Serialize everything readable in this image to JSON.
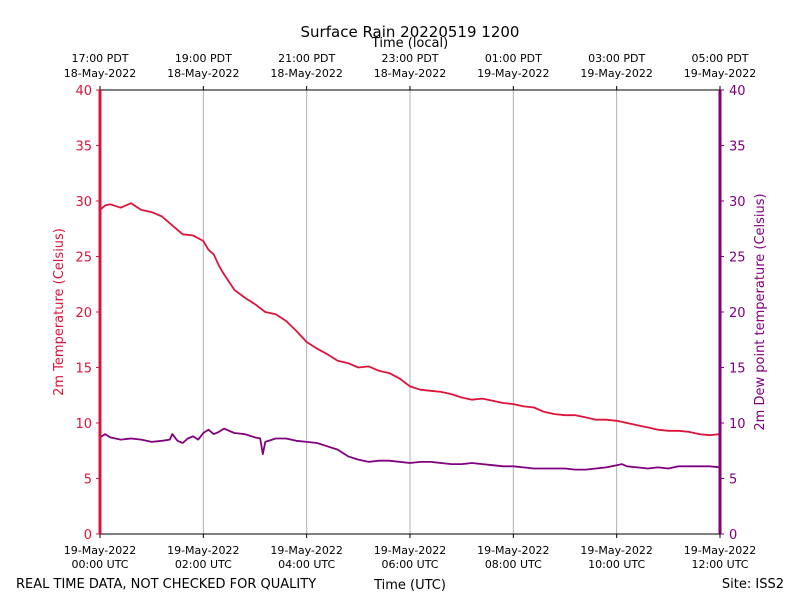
{
  "chart_data": {
    "type": "line",
    "title": "Surface Rain 20220519 1200",
    "top_axis_label": "Time (local)",
    "xlabel": "Time (UTC)",
    "ylabel_left": "2m Temperature (Celsius)",
    "ylabel_right": "2m Dew point temperature (Celsius)",
    "ylim": [
      0,
      40
    ],
    "yticks": [
      "0",
      "5",
      "10",
      "15",
      "20",
      "25",
      "30",
      "35",
      "40"
    ],
    "xlim_hours_utc": [
      0,
      12
    ],
    "grid": "vertical",
    "bottom_ticks": [
      {
        "hour": 0,
        "line1": "19-May-2022",
        "line2": "00:00 UTC"
      },
      {
        "hour": 2,
        "line1": "19-May-2022",
        "line2": "02:00 UTC"
      },
      {
        "hour": 4,
        "line1": "19-May-2022",
        "line2": "04:00 UTC"
      },
      {
        "hour": 6,
        "line1": "19-May-2022",
        "line2": "06:00 UTC"
      },
      {
        "hour": 8,
        "line1": "19-May-2022",
        "line2": "08:00 UTC"
      },
      {
        "hour": 10,
        "line1": "19-May-2022",
        "line2": "10:00 UTC"
      },
      {
        "hour": 12,
        "line1": "19-May-2022",
        "line2": "12:00 UTC"
      }
    ],
    "top_ticks": [
      {
        "hour": 0,
        "line1": "17:00 PDT",
        "line2": "18-May-2022"
      },
      {
        "hour": 2,
        "line1": "19:00 PDT",
        "line2": "18-May-2022"
      },
      {
        "hour": 4,
        "line1": "21:00 PDT",
        "line2": "18-May-2022"
      },
      {
        "hour": 6,
        "line1": "23:00 PDT",
        "line2": "18-May-2022"
      },
      {
        "hour": 8,
        "line1": "01:00 PDT",
        "line2": "19-May-2022"
      },
      {
        "hour": 10,
        "line1": "03:00 PDT",
        "line2": "19-May-2022"
      },
      {
        "hour": 12,
        "line1": "05:00 PDT",
        "line2": "19-May-2022"
      }
    ],
    "series": [
      {
        "name": "2m Temperature",
        "color": "#dc143c",
        "axis": "left",
        "x": [
          0,
          0.1,
          0.2,
          0.4,
          0.6,
          0.8,
          1.0,
          1.2,
          1.4,
          1.6,
          1.8,
          2.0,
          2.1,
          2.2,
          2.3,
          2.4,
          2.6,
          2.8,
          3.0,
          3.2,
          3.4,
          3.6,
          3.8,
          4.0,
          4.2,
          4.4,
          4.6,
          4.8,
          5.0,
          5.2,
          5.4,
          5.6,
          5.8,
          6.0,
          6.2,
          6.4,
          6.6,
          6.8,
          7.0,
          7.2,
          7.4,
          7.6,
          7.8,
          8.0,
          8.2,
          8.4,
          8.6,
          8.8,
          9.0,
          9.2,
          9.4,
          9.6,
          9.8,
          10.0,
          10.2,
          10.4,
          10.6,
          10.8,
          11.0,
          11.2,
          11.4,
          11.6,
          11.8,
          12.0
        ],
        "values": [
          29.2,
          29.6,
          29.7,
          29.4,
          29.8,
          29.2,
          29.0,
          28.6,
          27.8,
          27.0,
          26.9,
          26.4,
          25.6,
          25.2,
          24.2,
          23.4,
          22.0,
          21.3,
          20.7,
          20.0,
          19.8,
          19.2,
          18.3,
          17.3,
          16.7,
          16.2,
          15.6,
          15.4,
          15.0,
          15.1,
          14.7,
          14.5,
          14.0,
          13.3,
          13.0,
          12.9,
          12.8,
          12.6,
          12.3,
          12.1,
          12.2,
          12.0,
          11.8,
          11.7,
          11.5,
          11.4,
          11.0,
          10.8,
          10.7,
          10.7,
          10.5,
          10.3,
          10.3,
          10.2,
          10.0,
          9.8,
          9.6,
          9.4,
          9.3,
          9.3,
          9.2,
          9.0,
          8.9,
          9.0
        ]
      },
      {
        "name": "2m Dew point temperature",
        "color": "#800080",
        "axis": "right",
        "x": [
          0,
          0.1,
          0.2,
          0.4,
          0.6,
          0.8,
          1.0,
          1.2,
          1.35,
          1.4,
          1.5,
          1.6,
          1.7,
          1.8,
          1.9,
          2.0,
          2.1,
          2.2,
          2.3,
          2.4,
          2.6,
          2.8,
          3.0,
          3.1,
          3.15,
          3.2,
          3.4,
          3.6,
          3.8,
          4.0,
          4.2,
          4.4,
          4.6,
          4.8,
          5.0,
          5.2,
          5.4,
          5.6,
          5.8,
          6.0,
          6.2,
          6.4,
          6.6,
          6.8,
          7.0,
          7.2,
          7.4,
          7.6,
          7.8,
          8.0,
          8.2,
          8.4,
          8.6,
          8.8,
          9.0,
          9.2,
          9.4,
          9.6,
          9.8,
          10.0,
          10.1,
          10.2,
          10.4,
          10.6,
          10.8,
          11.0,
          11.2,
          11.4,
          11.6,
          11.8,
          12.0
        ],
        "values": [
          8.7,
          9.0,
          8.7,
          8.5,
          8.6,
          8.5,
          8.3,
          8.4,
          8.5,
          9.0,
          8.4,
          8.2,
          8.6,
          8.8,
          8.5,
          9.1,
          9.4,
          9.0,
          9.2,
          9.5,
          9.1,
          9.0,
          8.7,
          8.6,
          7.2,
          8.3,
          8.6,
          8.6,
          8.4,
          8.3,
          8.2,
          7.9,
          7.6,
          7.0,
          6.7,
          6.5,
          6.6,
          6.6,
          6.5,
          6.4,
          6.5,
          6.5,
          6.4,
          6.3,
          6.3,
          6.4,
          6.3,
          6.2,
          6.1,
          6.1,
          6.0,
          5.9,
          5.9,
          5.9,
          5.9,
          5.8,
          5.8,
          5.9,
          6.0,
          6.2,
          6.3,
          6.1,
          6.0,
          5.9,
          6.0,
          5.9,
          6.1,
          6.1,
          6.1,
          6.1,
          6.0
        ]
      }
    ]
  },
  "footer": {
    "left": "REAL TIME DATA, NOT CHECKED FOR QUALITY",
    "right": "Site: ISS2"
  },
  "colors": {
    "left_axis": "#dc143c",
    "right_axis": "#800080",
    "grid": "#b0b0b0"
  }
}
